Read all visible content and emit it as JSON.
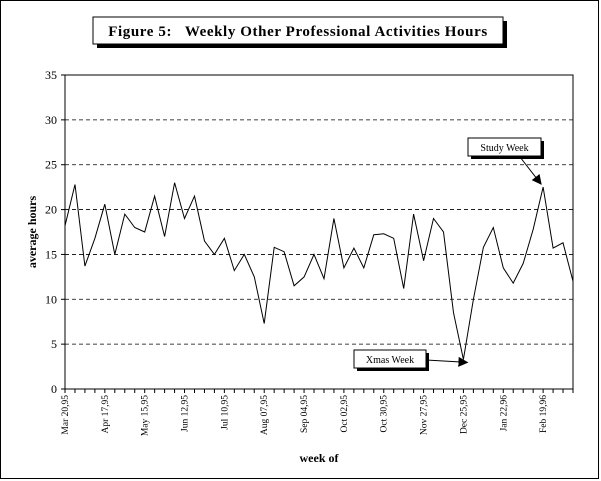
{
  "chart_data": {
    "type": "line",
    "title": "Figure 5:   Weekly Other Professional Activities Hours",
    "xlabel": "week of",
    "ylabel": "average hours",
    "ylim": [
      0,
      35
    ],
    "yticks": [
      0,
      5,
      10,
      15,
      20,
      25,
      30,
      35
    ],
    "grid": "horizontal-dashed",
    "legend": "none",
    "x_tick_labels": [
      "Mar 20,95",
      "Apr 17,95",
      "May 15,95",
      "Jun 12,95",
      "Jul 10,95",
      "Aug 07,95",
      "Sep 04,95",
      "Oct 02,95",
      "Oct 30,95",
      "Nov 27,95",
      "Dec 25,95",
      "Jan 22,96",
      "Feb 19,96"
    ],
    "series": [
      {
        "values": [
          18.2,
          22.8,
          13.7,
          16.8,
          20.6,
          15.0,
          19.5,
          18.0,
          17.5,
          21.5,
          17.0,
          23.0,
          19.0,
          21.5,
          16.5,
          15.0,
          16.8,
          13.2,
          15.0,
          12.5,
          7.3,
          15.8,
          15.3,
          11.5,
          12.5,
          15.0,
          12.3,
          19.0,
          13.5,
          15.7,
          13.5,
          17.2,
          17.3,
          16.8,
          11.2,
          19.5,
          14.3,
          19.0,
          17.5,
          8.5,
          3.3,
          10.0,
          15.8,
          18.0,
          13.5,
          11.8,
          14.0,
          17.8,
          22.5,
          15.7,
          16.3,
          12.0
        ]
      }
    ],
    "annotations": [
      {
        "text": "Study Week",
        "target_index": 48,
        "target_value": 22.5
      },
      {
        "text": "Xmas Week",
        "target_index": 40,
        "target_value": 3.3
      }
    ]
  }
}
